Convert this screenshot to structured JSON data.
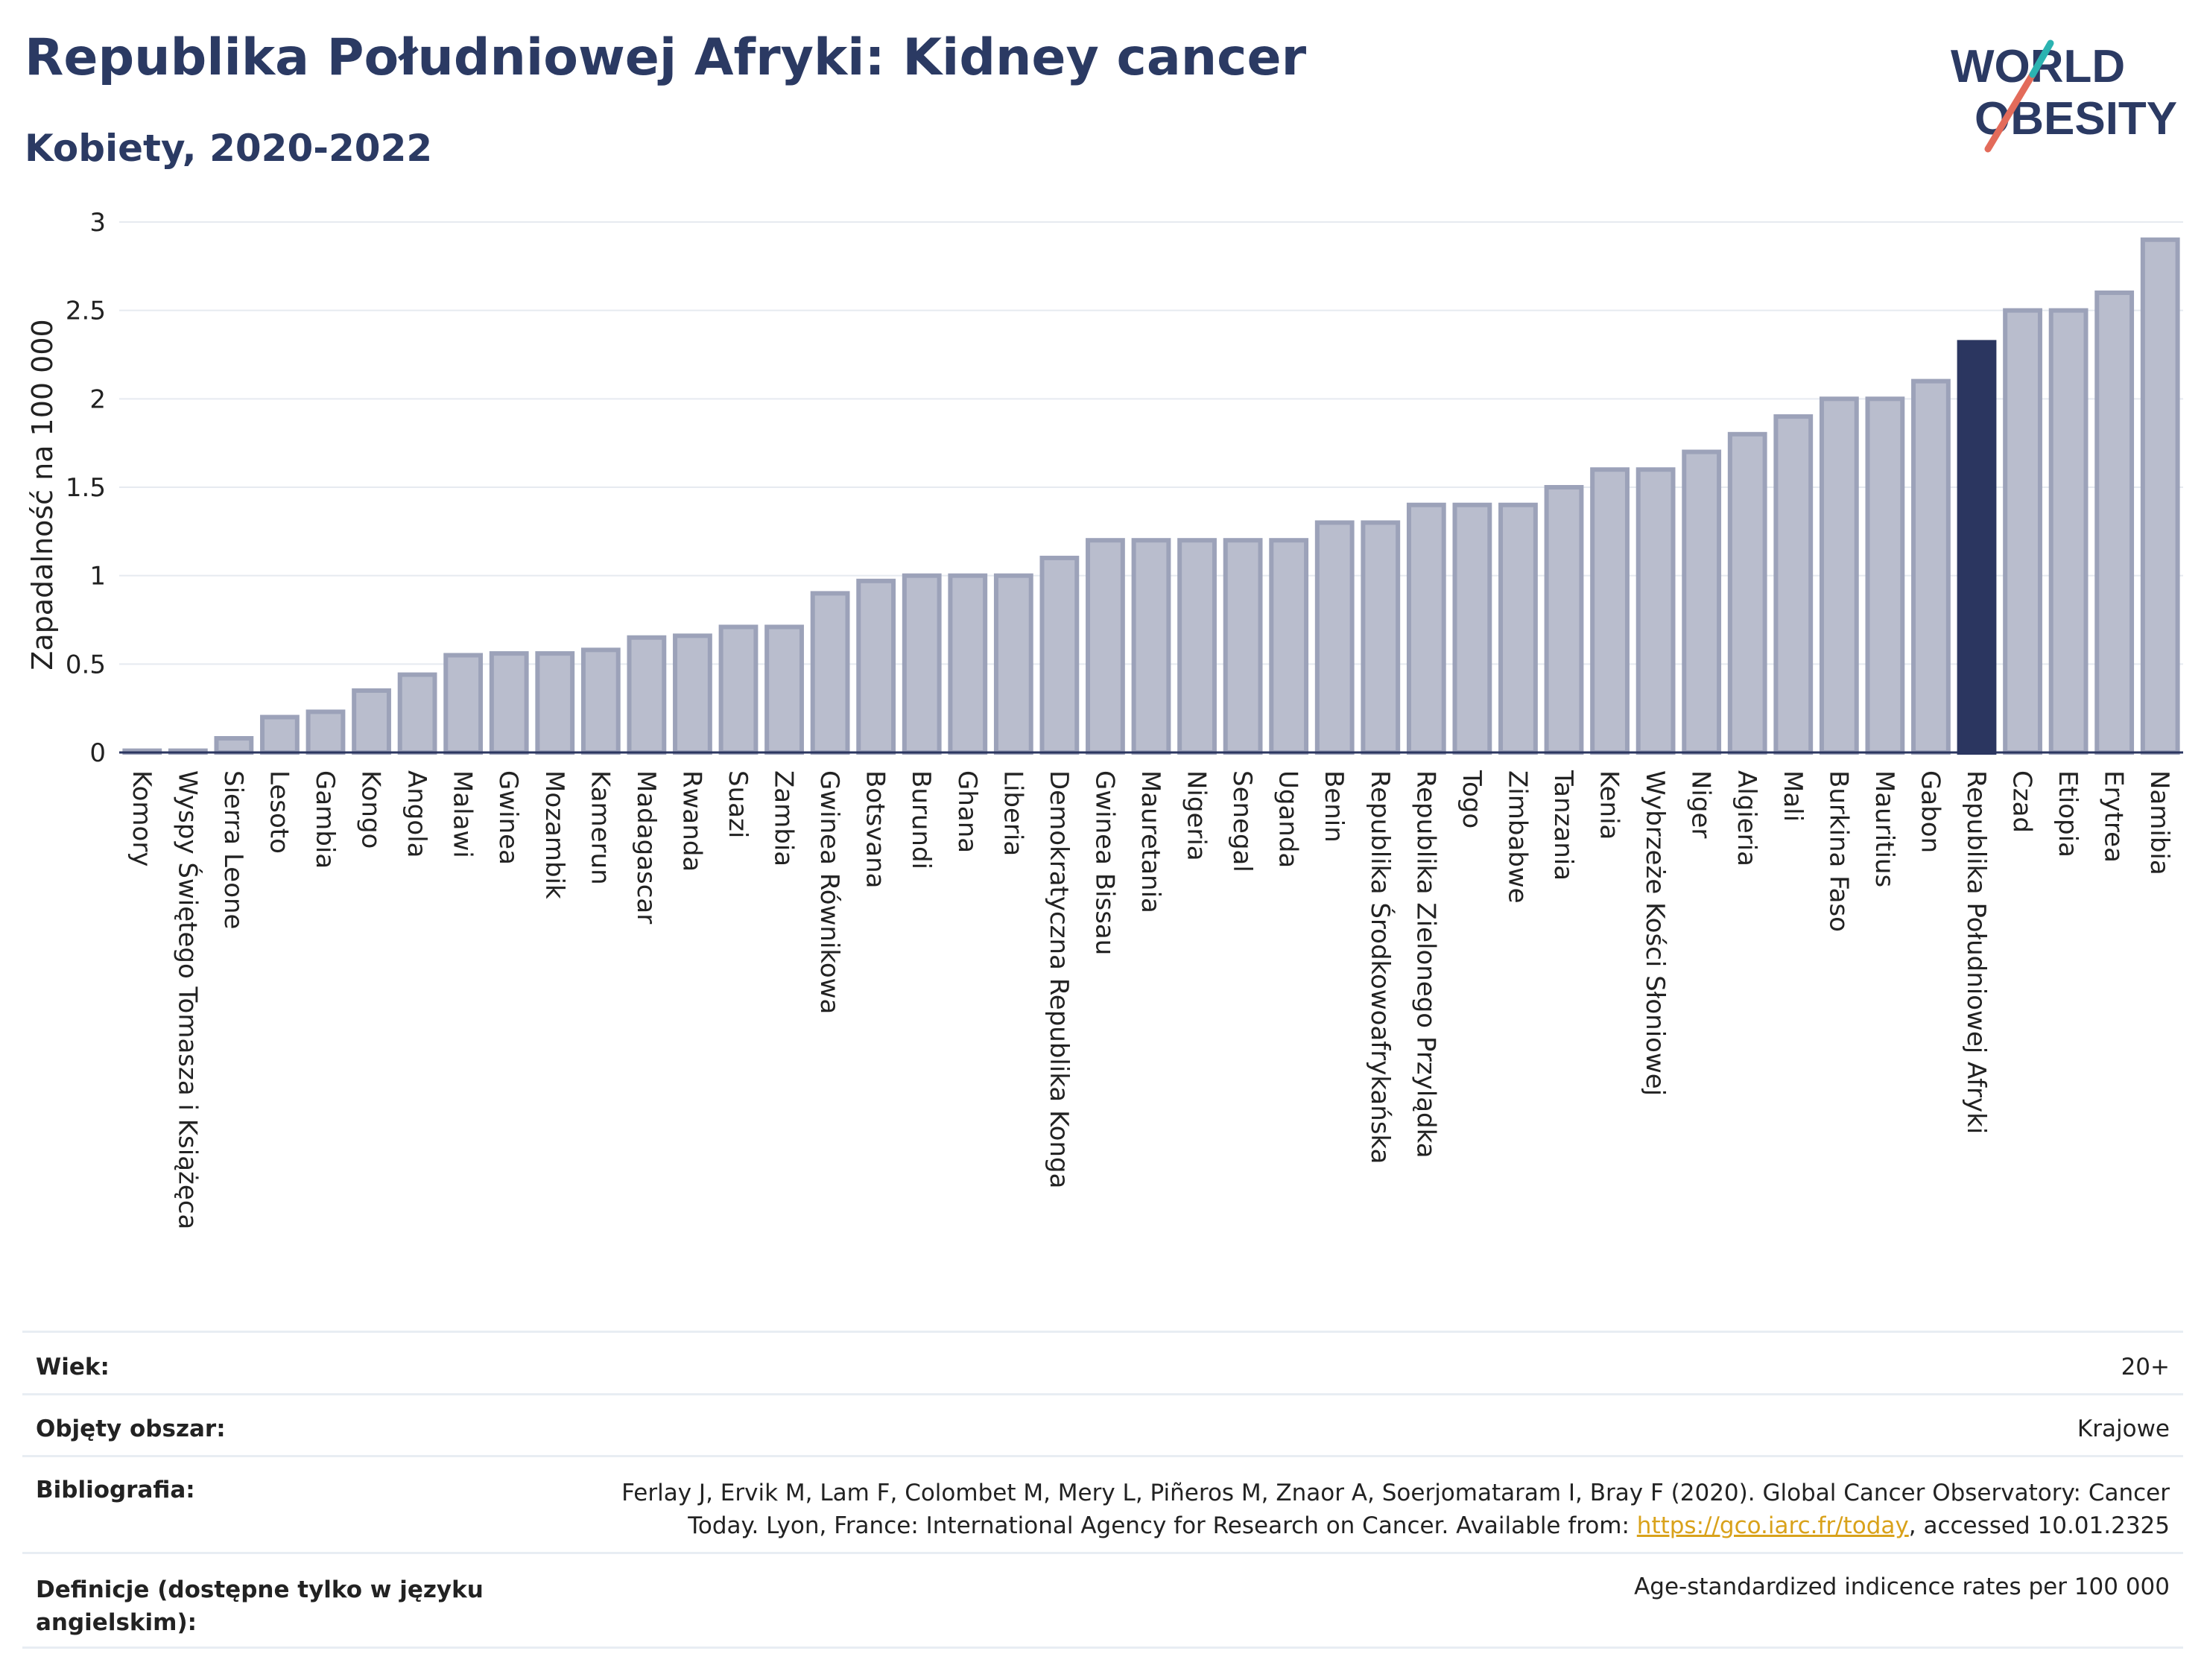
{
  "header": {
    "title": "Republika Południowej Afryki: Kidney cancer",
    "subtitle": "Kobiety, 2020-2022"
  },
  "logo": {
    "line1": "WORLD",
    "line2": "OBESITY"
  },
  "colors": {
    "bar": "#b9bdcd",
    "bar_border": "#9ca2b9",
    "highlight": "#2b3660",
    "title": "#2b3a63",
    "link": "#d9a21b"
  },
  "chart_data": {
    "type": "bar",
    "ylabel": "Zapadalność na 100 000",
    "ylim": [
      0,
      3
    ],
    "yticks": [
      "0",
      "0.5",
      "1",
      "1.5",
      "2",
      "2.5",
      "3"
    ],
    "grid": true,
    "highlight": "Republika Południowej Afryki",
    "categories": [
      "Komory",
      "Wyspy Świętego Tomasza i Książęca",
      "Sierra Leone",
      "Lesoto",
      "Gambia",
      "Kongo",
      "Angola",
      "Malawi",
      "Gwinea",
      "Mozambik",
      "Kamerun",
      "Madagascar",
      "Rwanda",
      "Suazi",
      "Zambia",
      "Gwinea Równikowa",
      "Botsvana",
      "Burundi",
      "Ghana",
      "Liberia",
      "Demokratyczna Republika Konga",
      "Gwinea Bissau",
      "Mauretania",
      "Nigeria",
      "Senegal",
      "Uganda",
      "Benin",
      "Republika Środkowoafrykańska",
      "Republika Zielonego Przylądka",
      "Togo",
      "Zimbabwe",
      "Tanzania",
      "Kenia",
      "Wybrzeże Kości Słoniowej",
      "Niger",
      "Algieria",
      "Mali",
      "Burkina Faso",
      "Mauritius",
      "Gabon",
      "Republika Południowej Afryki",
      "Czad",
      "Etiopia",
      "Erytrea",
      "Namibia"
    ],
    "values": [
      0.01,
      0.01,
      0.08,
      0.2,
      0.23,
      0.35,
      0.44,
      0.55,
      0.56,
      0.56,
      0.58,
      0.65,
      0.66,
      0.71,
      0.71,
      0.9,
      0.97,
      1.0,
      1.0,
      1.0,
      1.1,
      1.2,
      1.2,
      1.2,
      1.2,
      1.2,
      1.3,
      1.3,
      1.4,
      1.4,
      1.4,
      1.5,
      1.6,
      1.6,
      1.7,
      1.8,
      1.9,
      2.0,
      2.0,
      2.1,
      2.32,
      2.5,
      2.5,
      2.6,
      2.9
    ]
  },
  "info": {
    "age_label": "Wiek:",
    "age_value": "20+",
    "coverage_label": "Objęty obszar:",
    "coverage_value": "Krajowe",
    "bibliography_label": "Bibliografia:",
    "bibliography_text": "Ferlay J, Ervik M, Lam F, Colombet M, Mery L, Piñeros M, Znaor A, Soerjomataram I, Bray F (2020). Global Cancer Observatory: Cancer Today. Lyon, France: International Agency for Research on Cancer. Available from: ",
    "bibliography_link": "https://gco.iarc.fr/today",
    "bibliography_suffix": ", accessed 10.01.2325",
    "definitions_label": "Definicje (dostępne tylko w języku angielskim):",
    "definitions_value": "Age-standardized indicence rates per 100 000"
  }
}
